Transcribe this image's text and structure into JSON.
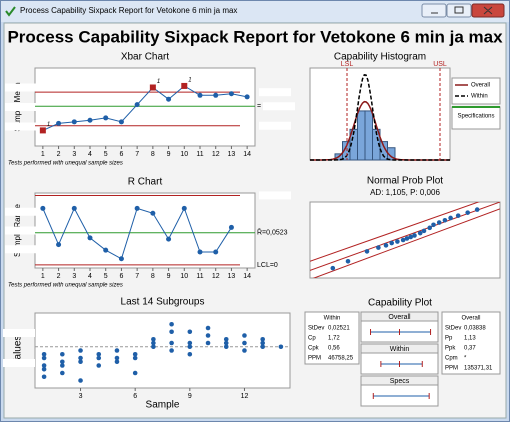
{
  "window": {
    "title": "Process Capability Sixpack Report for Vetokone 6 min ja max"
  },
  "title": "Process Capability Sixpack Report for Vetokone 6 min ja max",
  "xbar": {
    "title": "Xbar Chart",
    "ylabel": "Sample Mean",
    "note": "Tests performed with unequal sample sizes",
    "x": [
      1,
      2,
      3,
      4,
      5,
      6,
      7,
      8,
      9,
      10,
      11,
      12,
      13,
      14
    ],
    "values": [
      2.0,
      2.9,
      3.1,
      3.3,
      3.6,
      3.1,
      5.3,
      7.5,
      6.0,
      7.7,
      6.5,
      6.5,
      6.7,
      6.3
    ],
    "xlim": [
      0.5,
      14.5
    ],
    "ylim": [
      0,
      10
    ],
    "center": 5.1,
    "ucl": 6.9,
    "lcl": 2.6,
    "flag_label": "1",
    "center_label": "="
  },
  "rchart": {
    "title": "R Chart",
    "ylabel": "Sample Range",
    "note": "Tests performed with unequal sample sizes",
    "x": [
      1,
      2,
      3,
      4,
      5,
      6,
      7,
      8,
      9,
      10,
      11,
      12,
      13,
      14
    ],
    "values": [
      0.092,
      0.033,
      0.092,
      0.044,
      0.024,
      0.01,
      0.092,
      0.084,
      0.042,
      0.092,
      0.021,
      0.021,
      0.061,
      null
    ],
    "xlim": [
      0.5,
      14.5
    ],
    "ylim": [
      -0.005,
      0.117
    ],
    "ucl": 0.113,
    "center": {
      "value": 0.0523,
      "label": "R̄=0,0523"
    },
    "lcl": {
      "value": 0,
      "label": "LCL=0"
    }
  },
  "last14": {
    "title": "Last 14 Subgroups",
    "ylabel": "Values",
    "xlabel": "Sample",
    "xlim": [
      0.5,
      14.5
    ],
    "ylim": [
      0,
      10
    ],
    "xticks": [
      3,
      6,
      9,
      12
    ],
    "mean": 5.5,
    "samples": [
      {
        "x": 1,
        "values": [
          1.5,
          2.5,
          3,
          4,
          4.5
        ]
      },
      {
        "x": 2,
        "values": [
          2,
          3,
          3.5,
          4.5
        ]
      },
      {
        "x": 3,
        "values": [
          1,
          3.5,
          4,
          5
        ]
      },
      {
        "x": 4,
        "values": [
          3,
          4,
          4.5
        ]
      },
      {
        "x": 5,
        "values": [
          3.5,
          4,
          5
        ]
      },
      {
        "x": 6,
        "values": [
          2,
          4,
          4.5
        ]
      },
      {
        "x": 7,
        "values": [
          5.5,
          6,
          6.5
        ]
      },
      {
        "x": 8,
        "values": [
          5,
          6,
          7.5,
          8.5
        ]
      },
      {
        "x": 9,
        "values": [
          4.5,
          5.5,
          6,
          7.5
        ]
      },
      {
        "x": 10,
        "values": [
          6,
          7,
          8
        ]
      },
      {
        "x": 11,
        "values": [
          5.5,
          6,
          6.5
        ]
      },
      {
        "x": 12,
        "values": [
          5,
          6,
          7
        ]
      },
      {
        "x": 13,
        "values": [
          5.5,
          6,
          6.5
        ]
      },
      {
        "x": 14,
        "values": [
          5.5
        ]
      }
    ]
  },
  "histogram": {
    "title": "Capability Histogram",
    "lsl_label": "LSL",
    "usl_label": "USL",
    "lsl": 3.7,
    "usl": 13,
    "xlim": [
      0,
      14
    ],
    "ylim": [
      0,
      15
    ],
    "bins": [
      2.5,
      3.25,
      4,
      4.75,
      5.5,
      6.25,
      7,
      7.75,
      8.5
    ],
    "counts": [
      1,
      3,
      5,
      8,
      8,
      5,
      3,
      2
    ],
    "overall": {
      "name": "Overall",
      "color": "#8b1a1a",
      "mean": 5.5,
      "sd": 1.1
    },
    "within": {
      "name": "Within",
      "color": "#000000",
      "mean": 5.5,
      "sd": 0.75
    },
    "spec_label": "Specifications"
  },
  "normprob": {
    "title": "Normal Prob Plot",
    "subtitle": "AD: 1,105, P: 0,006",
    "xlim": [
      0,
      10
    ],
    "ylim": [
      0,
      10
    ],
    "points": [
      [
        1.2,
        1.3
      ],
      [
        2,
        2.2
      ],
      [
        3,
        3.5
      ],
      [
        3.6,
        4
      ],
      [
        4,
        4.3
      ],
      [
        4.3,
        4.6
      ],
      [
        4.6,
        4.8
      ],
      [
        4.9,
        5
      ],
      [
        5.1,
        5.2
      ],
      [
        5.3,
        5.4
      ],
      [
        5.5,
        5.6
      ],
      [
        5.8,
        5.9
      ],
      [
        6,
        6.2
      ],
      [
        6.3,
        6.6
      ],
      [
        6.5,
        7
      ],
      [
        6.8,
        7.3
      ],
      [
        7.1,
        7.6
      ],
      [
        7.4,
        7.9
      ],
      [
        7.8,
        8.2
      ],
      [
        8.3,
        8.6
      ],
      [
        8.8,
        9
      ]
    ],
    "lines": [
      [
        [
          0,
          1
        ],
        [
          10,
          10
        ]
      ],
      [
        [
          0,
          -0.2
        ],
        [
          10,
          9.1
        ]
      ],
      [
        [
          0,
          2.2
        ],
        [
          10,
          11
        ]
      ]
    ]
  },
  "capability": {
    "title": "Capability Plot",
    "within": {
      "header": "Within",
      "rows": [
        [
          "StDev",
          "0,02521"
        ],
        [
          "Cp",
          "1,72"
        ],
        [
          "Cpk",
          "0,56"
        ],
        [
          "PPM",
          "46758,25"
        ]
      ]
    },
    "overall": {
      "header": "Overall",
      "rows": [
        [
          "StDev",
          "0,03838"
        ],
        [
          "Pp",
          "1,13"
        ],
        [
          "Ppk",
          "0,37"
        ],
        [
          "Cpm",
          "*"
        ],
        [
          "PPM",
          "135371,31"
        ]
      ]
    },
    "xlim": [
      0,
      10
    ],
    "intervals": [
      {
        "name": "Overall",
        "lo": 0.8,
        "mid": 5,
        "hi": 9.5
      },
      {
        "name": "Within",
        "lo": 2.3,
        "mid": 5,
        "hi": 8.3
      },
      {
        "name": "Specs",
        "lo": 1.2,
        "hi": 9.3
      }
    ]
  }
}
